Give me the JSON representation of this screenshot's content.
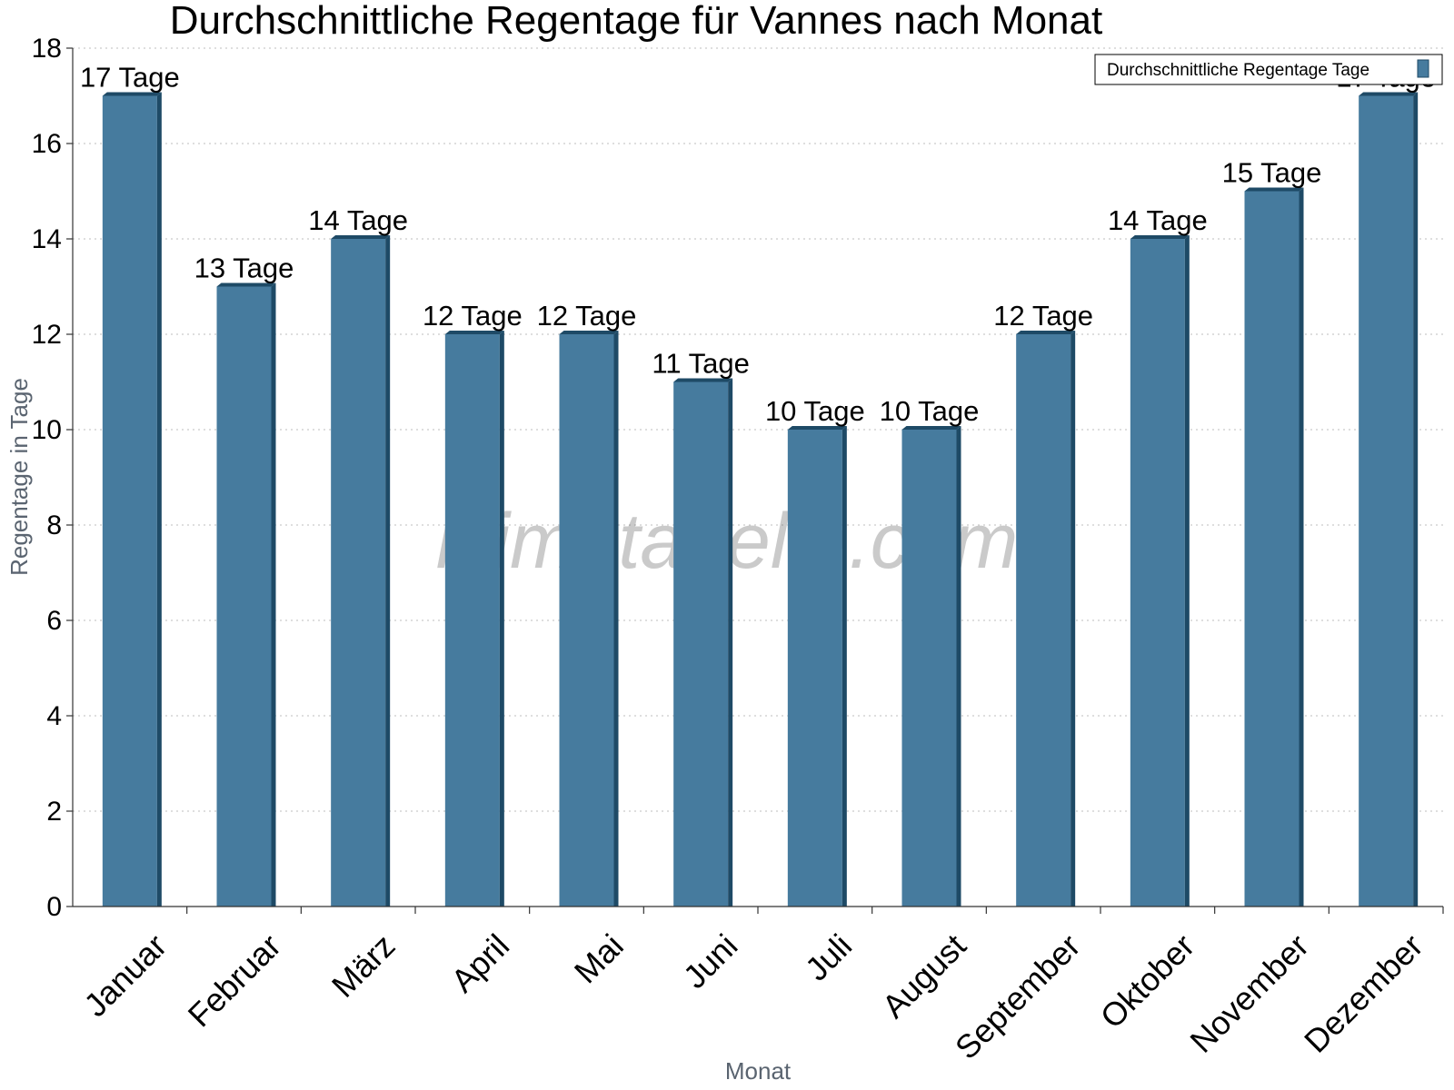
{
  "chart_data": {
    "type": "bar",
    "title": "Durchschnittliche Regentage für Vannes nach Monat",
    "xlabel": "Monat",
    "ylabel": "Regentage in Tage",
    "categories": [
      "Januar",
      "Februar",
      "März",
      "April",
      "Mai",
      "Juni",
      "Juli",
      "August",
      "September",
      "Oktober",
      "November",
      "Dezember"
    ],
    "series": [
      {
        "name": "Durchschnittliche Regentage Tage",
        "values": [
          17,
          13,
          14,
          12,
          12,
          11,
          10,
          10,
          12,
          14,
          15,
          17
        ],
        "labels": [
          "17 Tage",
          "13 Tage",
          "14 Tage",
          "12 Tage",
          "12 Tage",
          "11 Tage",
          "10 Tage",
          "10 Tage",
          "12 Tage",
          "14 Tage",
          "15 Tage",
          "17 Tage"
        ]
      }
    ],
    "ylim": [
      0,
      18
    ],
    "yticks": [
      0,
      2,
      4,
      6,
      8,
      10,
      12,
      14,
      16,
      18
    ],
    "grid": true,
    "legend": "top-right",
    "bar_color": "#467b9e",
    "bar_side_color": "#1e4a66",
    "watermark": "klimatabelle.com"
  }
}
